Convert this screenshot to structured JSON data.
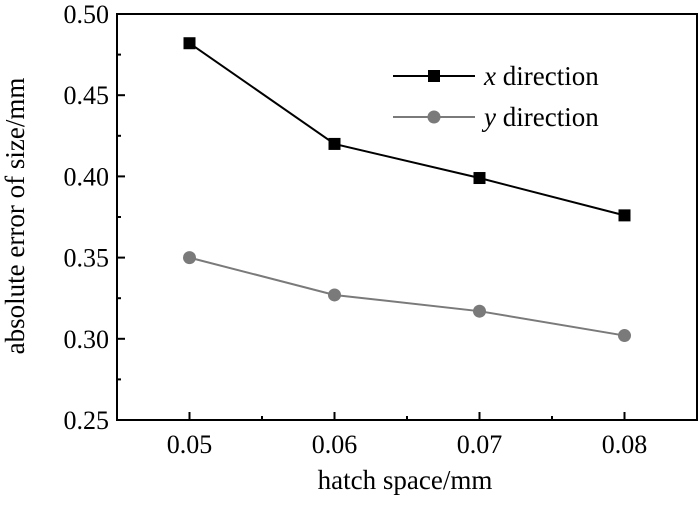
{
  "chart_data": {
    "type": "line",
    "title": "",
    "xlabel": "hatch space/mm",
    "ylabel": "absolute error of size/mm",
    "x": [
      0.05,
      0.06,
      0.07,
      0.08
    ],
    "x_tick_labels": [
      "0.05",
      "0.06",
      "0.07",
      "0.08"
    ],
    "xlim": [
      0.045,
      0.085
    ],
    "y_ticks": [
      0.25,
      0.3,
      0.35,
      0.4,
      0.45,
      0.5
    ],
    "y_tick_labels": [
      "0.25",
      "0.30",
      "0.35",
      "0.40",
      "0.45",
      "0.50"
    ],
    "ylim": [
      0.25,
      0.5
    ],
    "grid": false,
    "legend_position": "top-right",
    "series": [
      {
        "name_var": "x",
        "name_rest": " direction",
        "marker": "square",
        "color": "#000000",
        "values": [
          0.482,
          0.42,
          0.399,
          0.376
        ]
      },
      {
        "name_var": "y",
        "name_rest": " direction",
        "marker": "circle",
        "color": "#7a7a7a",
        "values": [
          0.35,
          0.327,
          0.317,
          0.302
        ]
      }
    ]
  }
}
